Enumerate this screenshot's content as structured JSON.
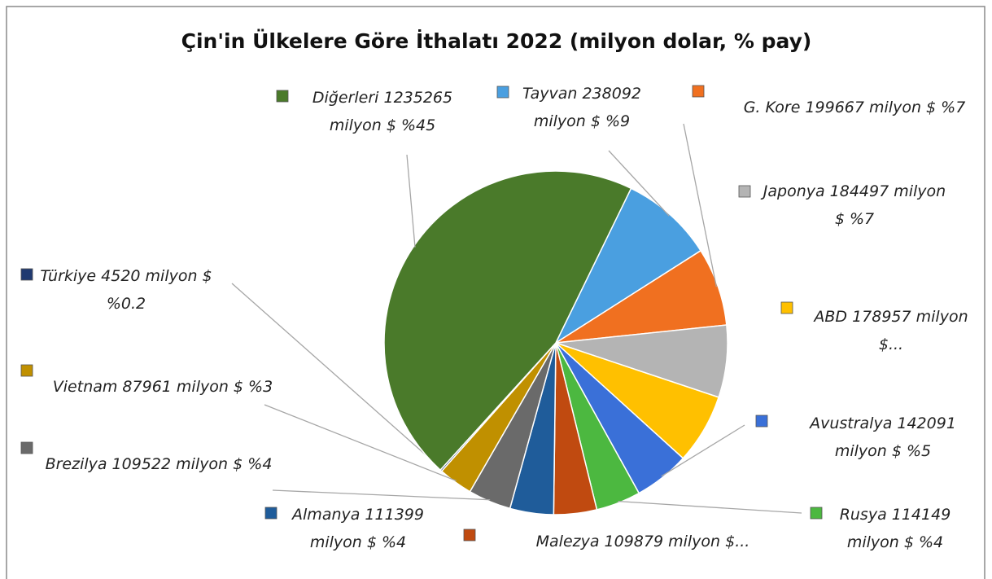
{
  "chart_data": {
    "type": "pie",
    "title": "Çin'in Ülkelere Göre İthalatı 2022 (milyon dolar, % pay)",
    "categories": [
      "Tayvan",
      "G. Kore",
      "Japonya",
      "ABD",
      "Avustralya",
      "Rusya",
      "Malezya",
      "Almanya",
      "Brezilya",
      "Vietnam",
      "Türkiye",
      "Diğerleri"
    ],
    "values": [
      238092,
      199667,
      184497,
      178957,
      142091,
      114149,
      109879,
      111399,
      109522,
      87961,
      4520,
      1235265
    ],
    "value_labels": [
      "Tayvan 238092 milyon $ %9",
      "G. Kore 199667 milyon $ %7",
      "Japonya 184497 milyon $ %7",
      "ABD 178957 milyon $...",
      "Avustralya 142091 milyon $ %5",
      "Rusya 114149 milyon $ %4",
      "Malezya 109879 milyon $...",
      "Almanya 111399 milyon $ %4",
      "Brezilya 109522 milyon $ %4",
      "Vietnam 87961 milyon $ %3",
      "Türkiye 4520 milyon $ %0.2",
      "Diğerleri 1235265 milyon $ %45"
    ],
    "colors": [
      "#4a9fe0",
      "#f07020",
      "#b4b4b4",
      "#ffc000",
      "#3a70d8",
      "#4cb840",
      "#c04a10",
      "#1f5c9a",
      "#6a6a6a",
      "#c09000",
      "#203a70",
      "#4a7a2a"
    ]
  }
}
